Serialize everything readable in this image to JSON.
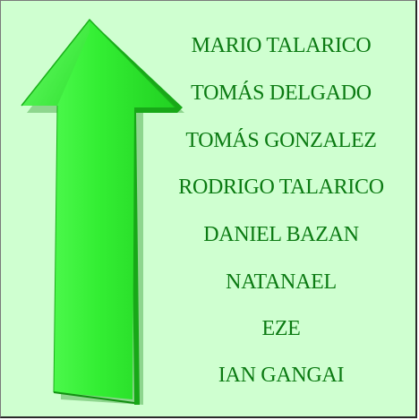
{
  "names": [
    "MARIO TALARICO",
    "TOMÁS DELGADO",
    "TOMÁS GONZALEZ",
    "RODRIGO TALARICO",
    "DANIEL BAZAN",
    "NATANAEL",
    "EZE",
    "IAN GANGAI"
  ],
  "colors": {
    "background": "#cfffd0",
    "text": "#0b7a12",
    "arrow": "#2ee82e",
    "arrow_dark": "#1bb01b"
  },
  "icons": {
    "arrow": "up-arrow-icon"
  }
}
